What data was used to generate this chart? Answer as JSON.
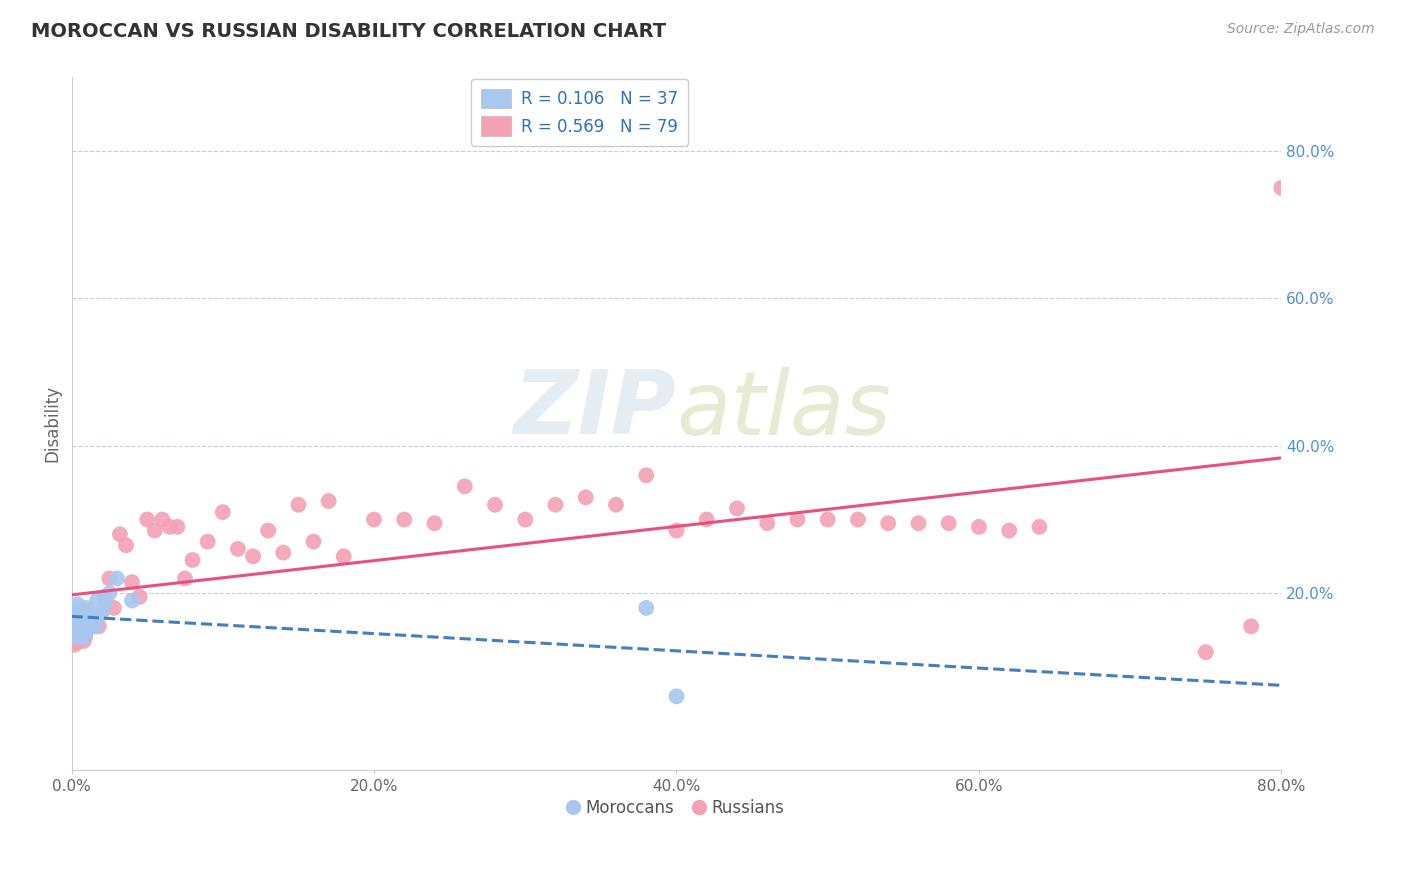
{
  "title": "MOROCCAN VS RUSSIAN DISABILITY CORRELATION CHART",
  "source": "Source: ZipAtlas.com",
  "ylabel": "Disability",
  "legend_moroccan_r": "0.106",
  "legend_moroccan_n": "37",
  "legend_russian_r": "0.569",
  "legend_russian_n": "79",
  "moroccan_color": "#a8c8f0",
  "russian_color": "#f4a0b5",
  "moroccan_line_color": "#4080c0",
  "russian_line_color": "#e85080",
  "background_color": "#ffffff",
  "grid_color": "#c0d0e0",
  "xlim": [
    0.0,
    0.8
  ],
  "ylim": [
    -0.04,
    0.9
  ],
  "moroccan_x": [
    0.001,
    0.001,
    0.002,
    0.002,
    0.003,
    0.003,
    0.004,
    0.004,
    0.005,
    0.005,
    0.006,
    0.006,
    0.007,
    0.007,
    0.008,
    0.008,
    0.009,
    0.009,
    0.01,
    0.01,
    0.01,
    0.011,
    0.011,
    0.012,
    0.013,
    0.014,
    0.015,
    0.016,
    0.017,
    0.018,
    0.02,
    0.022,
    0.025,
    0.03,
    0.04,
    0.38,
    0.4
  ],
  "moroccan_y": [
    0.155,
    0.165,
    0.14,
    0.18,
    0.155,
    0.175,
    0.145,
    0.185,
    0.15,
    0.17,
    0.155,
    0.175,
    0.145,
    0.165,
    0.14,
    0.17,
    0.155,
    0.175,
    0.15,
    0.165,
    0.18,
    0.155,
    0.175,
    0.16,
    0.17,
    0.155,
    0.165,
    0.155,
    0.19,
    0.17,
    0.175,
    0.185,
    0.2,
    0.22,
    0.19,
    0.18,
    0.06
  ],
  "russian_x": [
    0.001,
    0.001,
    0.002,
    0.002,
    0.003,
    0.003,
    0.004,
    0.004,
    0.005,
    0.005,
    0.006,
    0.006,
    0.007,
    0.007,
    0.008,
    0.008,
    0.009,
    0.009,
    0.01,
    0.01,
    0.01,
    0.011,
    0.012,
    0.013,
    0.014,
    0.015,
    0.016,
    0.018,
    0.02,
    0.022,
    0.025,
    0.028,
    0.032,
    0.036,
    0.04,
    0.045,
    0.05,
    0.055,
    0.06,
    0.065,
    0.07,
    0.075,
    0.08,
    0.09,
    0.1,
    0.11,
    0.12,
    0.13,
    0.14,
    0.15,
    0.16,
    0.17,
    0.18,
    0.2,
    0.22,
    0.24,
    0.26,
    0.28,
    0.3,
    0.32,
    0.34,
    0.36,
    0.38,
    0.4,
    0.42,
    0.44,
    0.46,
    0.48,
    0.5,
    0.52,
    0.54,
    0.56,
    0.58,
    0.6,
    0.62,
    0.64,
    0.75,
    0.78,
    0.8
  ],
  "russian_y": [
    0.155,
    0.165,
    0.13,
    0.17,
    0.145,
    0.175,
    0.135,
    0.165,
    0.14,
    0.17,
    0.145,
    0.175,
    0.145,
    0.165,
    0.135,
    0.165,
    0.14,
    0.165,
    0.15,
    0.165,
    0.175,
    0.165,
    0.17,
    0.155,
    0.165,
    0.17,
    0.165,
    0.155,
    0.175,
    0.195,
    0.22,
    0.18,
    0.28,
    0.265,
    0.215,
    0.195,
    0.3,
    0.285,
    0.3,
    0.29,
    0.29,
    0.22,
    0.245,
    0.27,
    0.31,
    0.26,
    0.25,
    0.285,
    0.255,
    0.32,
    0.27,
    0.325,
    0.25,
    0.3,
    0.3,
    0.295,
    0.345,
    0.32,
    0.3,
    0.32,
    0.33,
    0.32,
    0.36,
    0.285,
    0.3,
    0.315,
    0.295,
    0.3,
    0.3,
    0.3,
    0.295,
    0.295,
    0.295,
    0.29,
    0.285,
    0.29,
    0.12,
    0.155,
    0.75
  ]
}
